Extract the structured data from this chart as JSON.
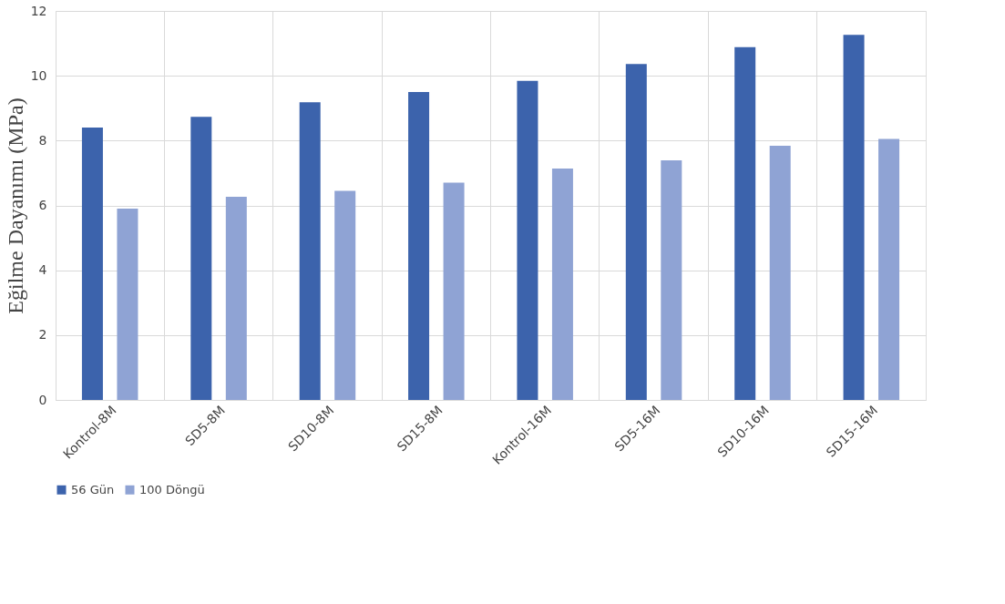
{
  "chart_data": {
    "type": "bar",
    "ylabel": "Eğilme Dayanımı (MPa)",
    "categories": [
      "Kontrol-8M",
      "SD5-8M",
      "SD10-8M",
      "SD15-8M",
      "Kontrol-16M",
      "SD5-16M",
      "SD10-16M",
      "SD15-16M"
    ],
    "series": [
      {
        "name": "56 Gün",
        "color": "#3c63ac",
        "values": [
          8.4,
          8.73,
          9.18,
          9.5,
          9.84,
          10.36,
          10.88,
          11.26
        ]
      },
      {
        "name": "100 Döngü",
        "color": "#8fa3d4",
        "values": [
          5.9,
          6.27,
          6.45,
          6.7,
          7.14,
          7.39,
          7.84,
          8.05
        ]
      }
    ],
    "ylim": [
      0,
      12
    ],
    "yticks": [
      0,
      2,
      4,
      6,
      8,
      10,
      12
    ],
    "grid": true,
    "legend": "bottom"
  }
}
